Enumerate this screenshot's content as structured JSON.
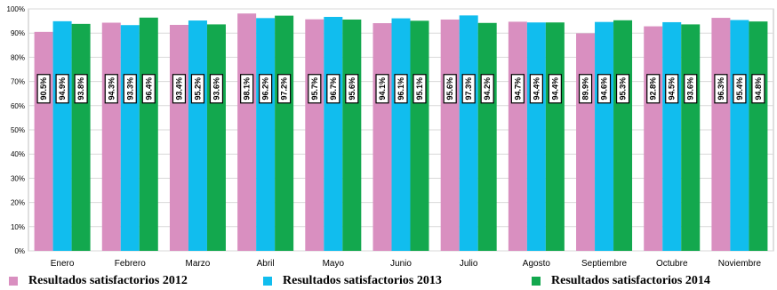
{
  "chart_data": {
    "type": "bar",
    "categories": [
      "Enero",
      "Febrero",
      "Marzo",
      "Abril",
      "Mayo",
      "Junio",
      "Julio",
      "Agosto",
      "Septiembre",
      "Octubre",
      "Noviembre"
    ],
    "series": [
      {
        "name": "Resultados satisfactorios 2012",
        "color": "#D98FC0",
        "values": [
          90.5,
          94.3,
          93.4,
          98.1,
          95.7,
          94.1,
          95.6,
          94.7,
          89.9,
          92.8,
          96.3
        ],
        "labels": [
          "90.5%",
          "94.3%",
          "93.4%",
          "98.1%",
          "95.7%",
          "94.1%",
          "95.6%",
          "94.7%",
          "89.9%",
          "92.8%",
          "96.3%"
        ]
      },
      {
        "name": "Resultados satisfactorios 2013",
        "color": "#11BDEE",
        "values": [
          94.9,
          93.3,
          95.2,
          96.2,
          96.7,
          96.1,
          97.3,
          94.4,
          94.6,
          94.5,
          95.4
        ],
        "labels": [
          "94.9%",
          "93.3%",
          "95.2%",
          "96.2%",
          "96.7%",
          "96.1%",
          "97.3%",
          "94.4%",
          "94.6%",
          "94.5%",
          "95.4%"
        ]
      },
      {
        "name": "Resultados satisfactorios 2014",
        "color": "#13A84E",
        "values": [
          93.8,
          96.4,
          93.6,
          97.2,
          95.6,
          95.1,
          94.2,
          94.4,
          95.3,
          93.6,
          94.8
        ],
        "labels": [
          "93.8%",
          "96.4%",
          "93.6%",
          "97.2%",
          "95.6%",
          "95.1%",
          "94.2%",
          "94.4%",
          "95.3%",
          "93.6%",
          "94.8%"
        ]
      }
    ],
    "yticks": [
      "0%",
      "10%",
      "20%",
      "30%",
      "40%",
      "50%",
      "60%",
      "70%",
      "80%",
      "90%",
      "100%"
    ],
    "ylim": [
      0,
      100
    ],
    "grid": true,
    "legend_position": "bottom"
  }
}
